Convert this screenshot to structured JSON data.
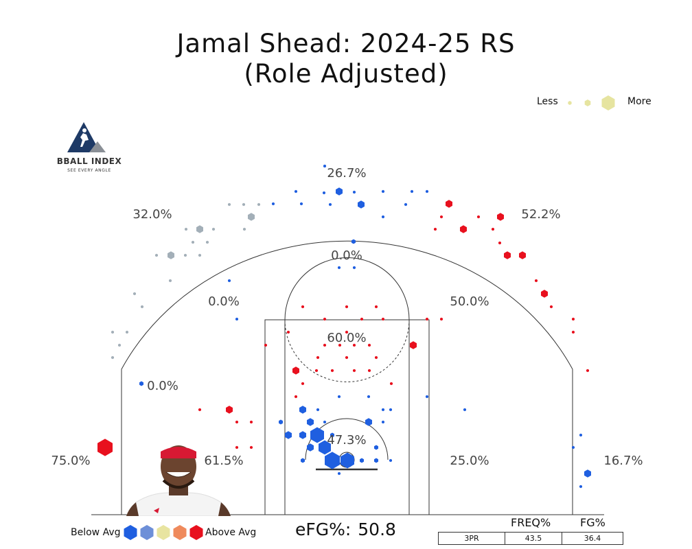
{
  "title": {
    "line1": "Jamal Shead: 2024-25 RS",
    "line2": "(Role Adjusted)"
  },
  "size_legend": {
    "less": "Less",
    "more": "More",
    "color": "#e6e4a0"
  },
  "brand": {
    "name": "BBALL INDEX",
    "tagline": "SEE EVERY ANGLE"
  },
  "efg": {
    "label": "eFG%:",
    "value": "50.8"
  },
  "color_legend": {
    "below": "Below Avg",
    "above": "Above Avg",
    "colors": [
      "#1f5fe0",
      "#6d8fd8",
      "#e8e4a0",
      "#ef8a5c",
      "#e8101e"
    ]
  },
  "stats": {
    "headers": [
      "FREQ%",
      "FG%"
    ],
    "rows": [
      {
        "label": "3PR",
        "freq": "43.5",
        "fg": "36.4"
      }
    ]
  },
  "chart_data": {
    "type": "scatter",
    "title": "Jamal Shead: 2024-25 RS (Role Adjusted)",
    "subtype": "hexbin shot chart",
    "zones": [
      {
        "zone": "above-break-3-center",
        "fg_pct": "26.7%"
      },
      {
        "zone": "above-break-3-left",
        "fg_pct": "32.0%"
      },
      {
        "zone": "above-break-3-right",
        "fg_pct": "52.2%"
      },
      {
        "zone": "long-mid-center",
        "fg_pct": "0.0%"
      },
      {
        "zone": "long-mid-left-wing",
        "fg_pct": "0.0%"
      },
      {
        "zone": "long-mid-right-wing",
        "fg_pct": "50.0%"
      },
      {
        "zone": "long-mid-left-baseline",
        "fg_pct": "0.0%"
      },
      {
        "zone": "short-mid-paint",
        "fg_pct": "60.0%"
      },
      {
        "zone": "rim",
        "fg_pct": "47.3%"
      },
      {
        "zone": "left-corner-3",
        "fg_pct": "75.0%"
      },
      {
        "zone": "left-baseline-mid",
        "fg_pct": "61.5%"
      },
      {
        "zone": "right-baseline-mid",
        "fg_pct": "25.0%"
      },
      {
        "zone": "right-corner-3",
        "fg_pct": "16.7%"
      }
    ]
  }
}
